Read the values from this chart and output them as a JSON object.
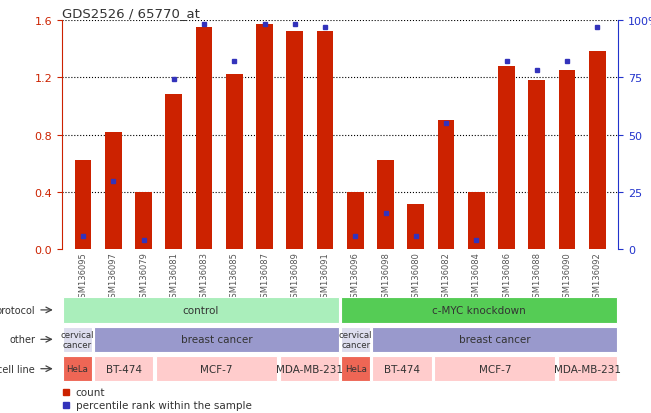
{
  "title": "GDS2526 / 65770_at",
  "samples": [
    "GSM136095",
    "GSM136097",
    "GSM136079",
    "GSM136081",
    "GSM136083",
    "GSM136085",
    "GSM136087",
    "GSM136089",
    "GSM136091",
    "GSM136096",
    "GSM136098",
    "GSM136080",
    "GSM136082",
    "GSM136084",
    "GSM136086",
    "GSM136088",
    "GSM136090",
    "GSM136092"
  ],
  "counts": [
    0.62,
    0.82,
    0.4,
    1.08,
    1.55,
    1.22,
    1.57,
    1.52,
    1.52,
    0.4,
    0.62,
    0.32,
    0.9,
    0.4,
    1.28,
    1.18,
    1.25,
    1.38
  ],
  "percentiles": [
    6,
    30,
    4,
    74,
    98,
    82,
    98,
    98,
    97,
    6,
    16,
    6,
    55,
    4,
    82,
    78,
    82,
    97
  ],
  "ylim_left": [
    0,
    1.6
  ],
  "ylim_right": [
    0,
    100
  ],
  "yticks_left": [
    0,
    0.4,
    0.8,
    1.2,
    1.6
  ],
  "yticks_right": [
    0,
    25,
    50,
    75,
    100
  ],
  "bar_color": "#cc2200",
  "dot_color": "#3333bb",
  "grid_color": "#000000",
  "protocol_groups": [
    {
      "text": "control",
      "start": 0,
      "end": 9,
      "color": "#aaeebb"
    },
    {
      "text": "c-MYC knockdown",
      "start": 9,
      "end": 18,
      "color": "#55cc55"
    }
  ],
  "other_groups": [
    {
      "text": "cervical\ncancer",
      "start": 0,
      "end": 1,
      "color": "#ddddee"
    },
    {
      "text": "breast cancer",
      "start": 1,
      "end": 9,
      "color": "#9999cc"
    },
    {
      "text": "cervical\ncancer",
      "start": 9,
      "end": 10,
      "color": "#ddddee"
    },
    {
      "text": "breast cancer",
      "start": 10,
      "end": 18,
      "color": "#9999cc"
    }
  ],
  "cellline_groups": [
    {
      "text": "HeLa",
      "start": 0,
      "end": 1,
      "color": "#ee6655"
    },
    {
      "text": "BT-474",
      "start": 1,
      "end": 3,
      "color": "#ffcccc"
    },
    {
      "text": "MCF-7",
      "start": 3,
      "end": 7,
      "color": "#ffcccc"
    },
    {
      "text": "MDA-MB-231",
      "start": 7,
      "end": 9,
      "color": "#ffcccc"
    },
    {
      "text": "HeLa",
      "start": 9,
      "end": 10,
      "color": "#ee6655"
    },
    {
      "text": "BT-474",
      "start": 10,
      "end": 12,
      "color": "#ffcccc"
    },
    {
      "text": "MCF-7",
      "start": 12,
      "end": 16,
      "color": "#ffcccc"
    },
    {
      "text": "MDA-MB-231",
      "start": 16,
      "end": 18,
      "color": "#ffcccc"
    }
  ],
  "row_labels": [
    "protocol",
    "other",
    "cell line"
  ],
  "bg_color": "#ffffff",
  "left_axis_color": "#cc2200",
  "right_axis_color": "#2233cc"
}
